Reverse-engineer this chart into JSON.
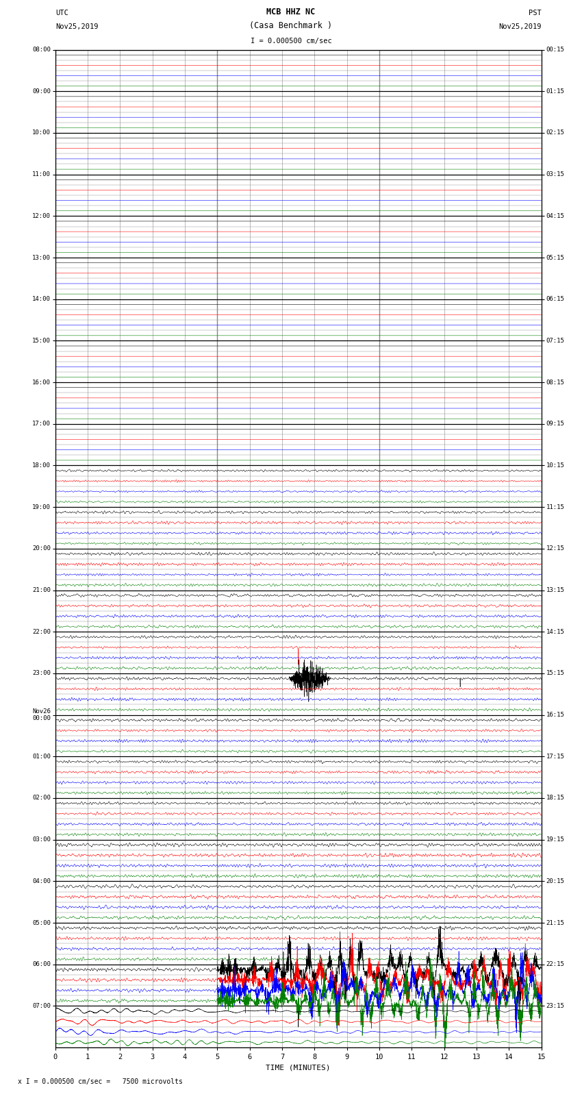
{
  "title_line1": "MCB HHZ NC",
  "title_line2": "(Casa Benchmark )",
  "title_line3": "I = 0.000500 cm/sec",
  "left_header_line1": "UTC",
  "left_header_line2": "Nov25,2019",
  "right_header_line1": "PST",
  "right_header_line2": "Nov25,2019",
  "xlabel": "TIME (MINUTES)",
  "footer": "x I = 0.000500 cm/sec =   7500 microvolts",
  "utc_times": [
    "08:00",
    "09:00",
    "10:00",
    "11:00",
    "12:00",
    "13:00",
    "14:00",
    "15:00",
    "16:00",
    "17:00",
    "18:00",
    "19:00",
    "20:00",
    "21:00",
    "22:00",
    "23:00",
    "Nov26\n00:00",
    "01:00",
    "02:00",
    "03:00",
    "04:00",
    "05:00",
    "06:00",
    "07:00"
  ],
  "pst_times": [
    "00:15",
    "01:15",
    "02:15",
    "03:15",
    "04:15",
    "05:15",
    "06:15",
    "07:15",
    "08:15",
    "09:15",
    "10:15",
    "11:15",
    "12:15",
    "13:15",
    "14:15",
    "15:15",
    "16:15",
    "17:15",
    "18:15",
    "19:15",
    "20:15",
    "21:15",
    "22:15",
    "23:15"
  ],
  "n_rows": 24,
  "n_minutes": 15,
  "background_color": "#ffffff",
  "grid_major_color": "#000000",
  "grid_minor_color": "#888888",
  "trace_colors": [
    "#000000",
    "#ff0000",
    "#0000ff",
    "#008000"
  ],
  "quiet_rows": 10,
  "fig_width": 8.5,
  "fig_height": 16.13,
  "samples_per_minute": 300
}
